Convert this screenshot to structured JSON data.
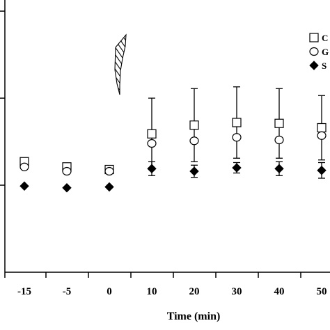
{
  "chart_data": {
    "type": "scatter",
    "title": "",
    "xlabel": "Time (min)",
    "ylabel": "",
    "x_categories": [
      "-15",
      "-5",
      "0",
      "10",
      "20",
      "30",
      "40",
      "50"
    ],
    "ylim": [
      0,
      3
    ],
    "grid": false,
    "legend_position": "top-right",
    "series": [
      {
        "name": "C",
        "marker": "open-square",
        "color": "#000000",
        "values": [
          1.27,
          1.21,
          1.18,
          1.59,
          1.69,
          1.72,
          1.71,
          1.66
        ],
        "error": [
          0,
          0,
          0,
          0.41,
          0.42,
          0.41,
          0.4,
          0.37
        ]
      },
      {
        "name": "G",
        "marker": "open-circle",
        "color": "#000000",
        "values": [
          1.21,
          1.16,
          1.16,
          1.48,
          1.51,
          1.55,
          1.52,
          1.57
        ],
        "error": [
          0,
          0,
          0,
          0,
          0,
          0,
          0,
          0
        ]
      },
      {
        "name": "S",
        "marker": "filled-diamond",
        "color": "#000000",
        "values": [
          0.99,
          0.97,
          0.98,
          1.19,
          1.16,
          1.2,
          1.19,
          1.17
        ],
        "error": [
          0,
          0,
          0,
          0.08,
          0.07,
          0.06,
          0.08,
          0.09
        ]
      }
    ],
    "annotations": [
      {
        "type": "arrow-icon",
        "name": "stimulus-arrow",
        "between_x": [
          "0",
          "10"
        ]
      }
    ]
  }
}
